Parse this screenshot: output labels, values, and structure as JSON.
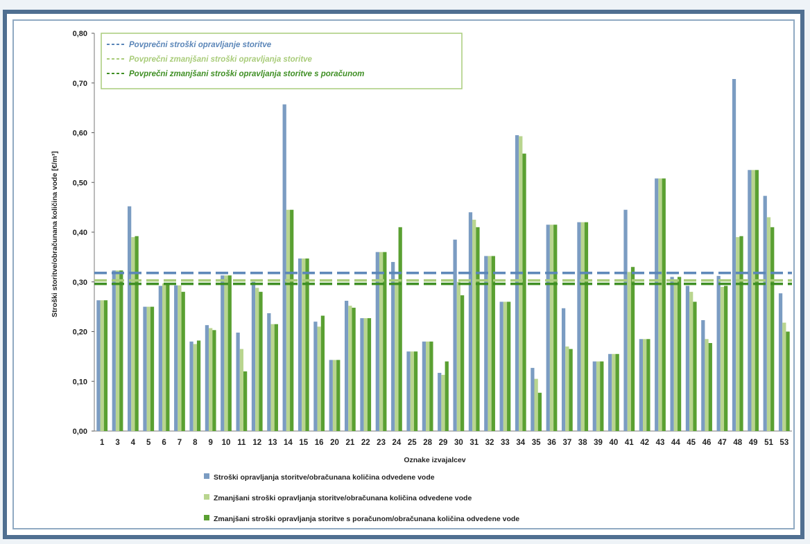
{
  "chart_data": {
    "type": "bar",
    "ylabel": "Stroški storitve/obračunana količina vode [€/m³]",
    "xlabel": "Oznake izvajalcev",
    "ylim": [
      0,
      0.8
    ],
    "yticks": [
      "0,00",
      "0,10",
      "0,20",
      "0,30",
      "0,40",
      "0,50",
      "0,60",
      "0,70",
      "0,80"
    ],
    "categories": [
      "1",
      "3",
      "4",
      "5",
      "6",
      "7",
      "8",
      "9",
      "10",
      "11",
      "12",
      "13",
      "14",
      "15",
      "16",
      "20",
      "21",
      "22",
      "23",
      "24",
      "25",
      "28",
      "29",
      "30",
      "31",
      "32",
      "33",
      "34",
      "35",
      "36",
      "37",
      "38",
      "39",
      "40",
      "41",
      "42",
      "43",
      "44",
      "45",
      "46",
      "47",
      "48",
      "49",
      "51",
      "53"
    ],
    "series": [
      {
        "name": "Stroški opravljanja storitve/obračunana količina odvedene vode",
        "color": "#7b9cc2",
        "values": [
          0.263,
          0.323,
          0.452,
          0.25,
          0.292,
          0.293,
          0.18,
          0.213,
          0.313,
          0.198,
          0.3,
          0.237,
          0.657,
          0.347,
          0.22,
          0.143,
          0.262,
          0.227,
          0.36,
          0.34,
          0.16,
          0.18,
          0.117,
          0.385,
          0.44,
          0.352,
          0.26,
          0.595,
          0.127,
          0.415,
          0.247,
          0.42,
          0.14,
          0.155,
          0.445,
          0.185,
          0.508,
          0.31,
          0.292,
          0.223,
          0.312,
          0.708,
          0.525,
          0.473,
          0.277
        ]
      },
      {
        "name": "Zmanjšani stroški opravljanja storitve/obračunana količina odvedene vode",
        "color": "#b9d58f",
        "values": [
          0.263,
          0.323,
          0.39,
          0.25,
          0.297,
          0.293,
          0.175,
          0.207,
          0.313,
          0.165,
          0.288,
          0.215,
          0.445,
          0.347,
          0.21,
          0.143,
          0.252,
          0.227,
          0.36,
          0.3,
          0.16,
          0.18,
          0.113,
          0.3,
          0.425,
          0.352,
          0.26,
          0.593,
          0.105,
          0.415,
          0.17,
          0.42,
          0.14,
          0.155,
          0.32,
          0.185,
          0.508,
          0.305,
          0.28,
          0.185,
          0.29,
          0.39,
          0.525,
          0.43,
          0.218
        ]
      },
      {
        "name": "Zmanjšani stroški opravljanja storitve s poračunom/obračunana količina odvedene vode",
        "color": "#5aa032",
        "values": [
          0.263,
          0.323,
          0.392,
          0.25,
          0.297,
          0.28,
          0.182,
          0.203,
          0.313,
          0.12,
          0.28,
          0.215,
          0.445,
          0.347,
          0.232,
          0.143,
          0.248,
          0.227,
          0.36,
          0.41,
          0.16,
          0.18,
          0.14,
          0.273,
          0.41,
          0.352,
          0.26,
          0.558,
          0.077,
          0.415,
          0.165,
          0.42,
          0.14,
          0.155,
          0.33,
          0.185,
          0.508,
          0.31,
          0.26,
          0.177,
          0.292,
          0.392,
          0.525,
          0.41,
          0.2
        ]
      }
    ],
    "reference_lines": [
      {
        "name": "Povprečni stroški opravljanje storitve",
        "value": 0.318,
        "color": "#5b86b8"
      },
      {
        "name": "Povprečni zmanjšani stroški opravljanja storitve",
        "value": 0.303,
        "color": "#a9cc7a"
      },
      {
        "name": "Povprečni zmanjšani stroški opravljanja storitve s poračunom",
        "value": 0.296,
        "color": "#3f8f24"
      }
    ],
    "grid": false,
    "legend_placement": "top-left (averages) and bottom (series)"
  }
}
